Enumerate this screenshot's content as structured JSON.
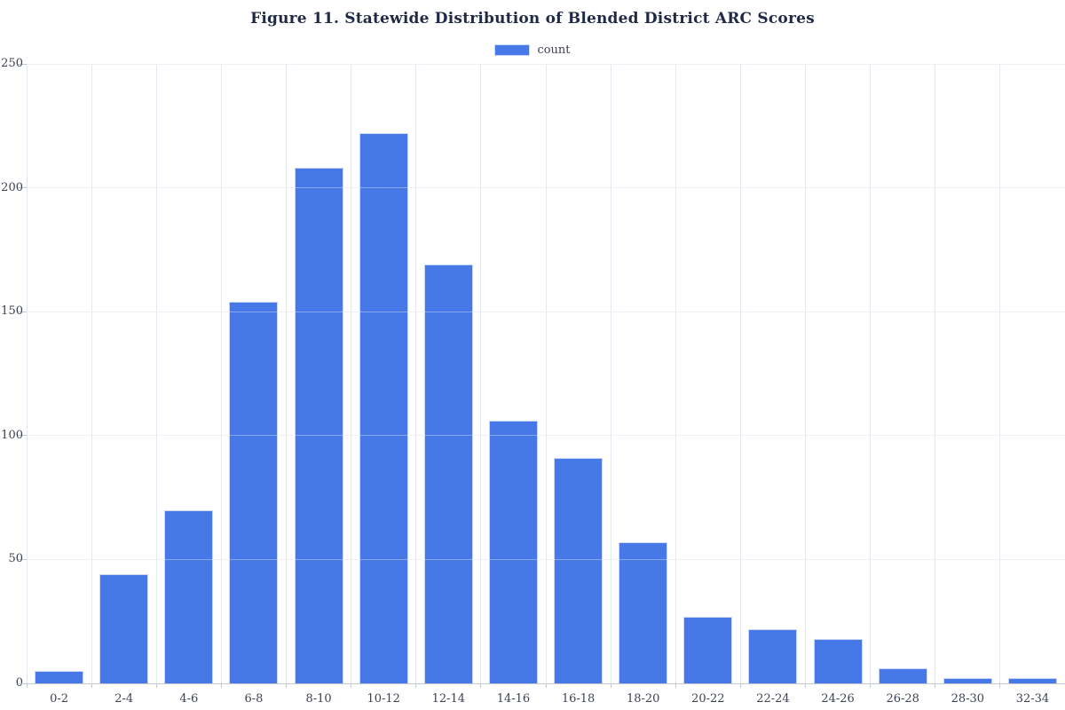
{
  "chart_data": {
    "type": "bar",
    "title": "Figure 11. Statewide Distribution of Blended District ARC Scores",
    "categories": [
      "0-2",
      "2-4",
      "4-6",
      "6-8",
      "8-10",
      "10-12",
      "12-14",
      "14-16",
      "16-18",
      "18-20",
      "20-22",
      "22-24",
      "24-26",
      "26-28",
      "28-30",
      "32-34"
    ],
    "series": [
      {
        "name": "count",
        "values": [
          5,
          44,
          70,
          154,
          208,
          222,
          169,
          106,
          91,
          57,
          27,
          22,
          18,
          6,
          2,
          2
        ]
      }
    ],
    "xlabel": "",
    "ylabel": "",
    "ylim": [
      0,
      250
    ],
    "yticks": [
      0,
      50,
      100,
      150,
      200,
      250
    ],
    "grid": true,
    "legend_position": "top-center"
  },
  "colors": {
    "bar": "#4678e8",
    "bar_border": "#c9d6f4",
    "gridline": "#e4e9f1",
    "axis": "#c3c8d1",
    "tick_text": "#3d4254",
    "title_text": "#1f2a44",
    "background": "#ffffff"
  }
}
